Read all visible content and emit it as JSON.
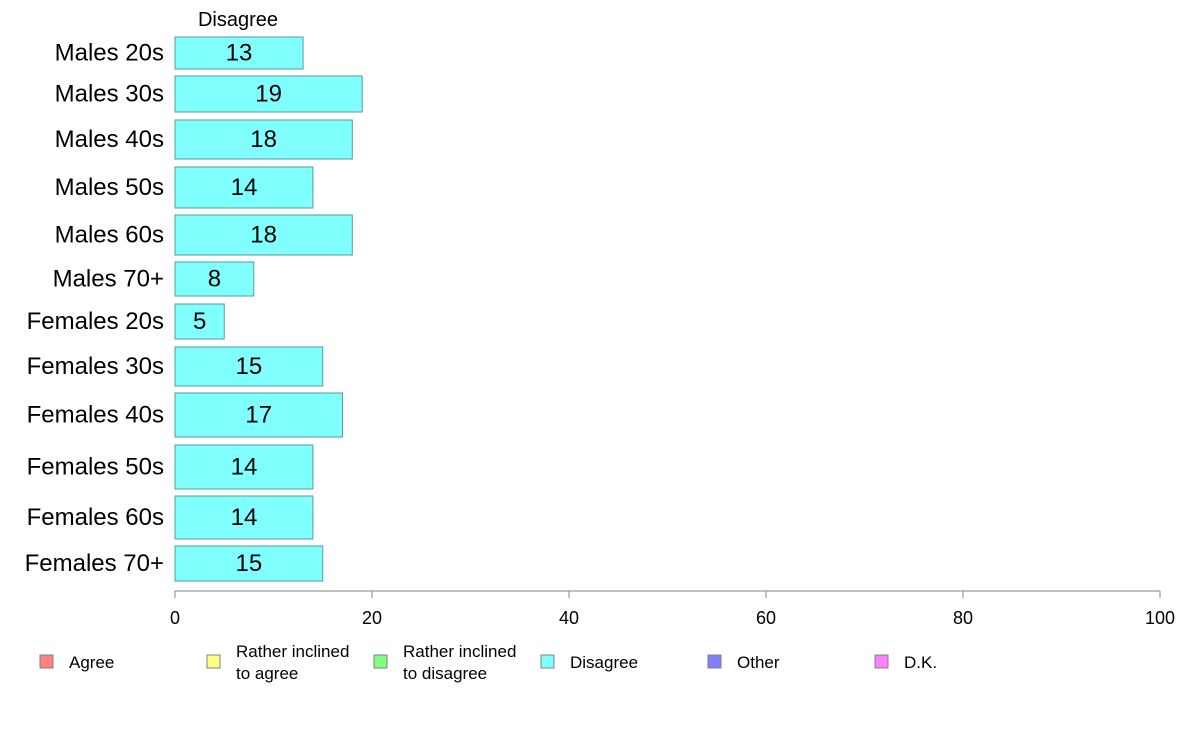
{
  "chart_data": {
    "type": "bar",
    "orientation": "horizontal",
    "categories": [
      "Males 20s",
      "Males 30s",
      "Males 40s",
      "Males 50s",
      "Males 60s",
      "Males 70+",
      "Females 20s",
      "Females 30s",
      "Females 40s",
      "Females 50s",
      "Females 60s",
      "Females 70+"
    ],
    "series": [
      {
        "name": "Disagree",
        "color": "#80ffff",
        "values": [
          13,
          19,
          18,
          14,
          18,
          8,
          5,
          15,
          17,
          14,
          14,
          15
        ]
      }
    ],
    "xlim": [
      0,
      100
    ],
    "xticks": [
      "0",
      "20",
      "40",
      "60",
      "80",
      "100"
    ],
    "grid": false,
    "legend": {
      "placement": "bottom",
      "items": [
        {
          "lines": [
            "Agree"
          ],
          "color": "#ff8080"
        },
        {
          "lines": [
            "Rather inclined",
            "to agree"
          ],
          "color": "#ffff80"
        },
        {
          "lines": [
            "Rather inclined",
            "to disagree"
          ],
          "color": "#80ff80"
        },
        {
          "lines": [
            "Disagree"
          ],
          "color": "#80ffff"
        },
        {
          "lines": [
            "Other"
          ],
          "color": "#8080ff"
        },
        {
          "lines": [
            "D.K."
          ],
          "color": "#ff80ff"
        }
      ]
    }
  }
}
